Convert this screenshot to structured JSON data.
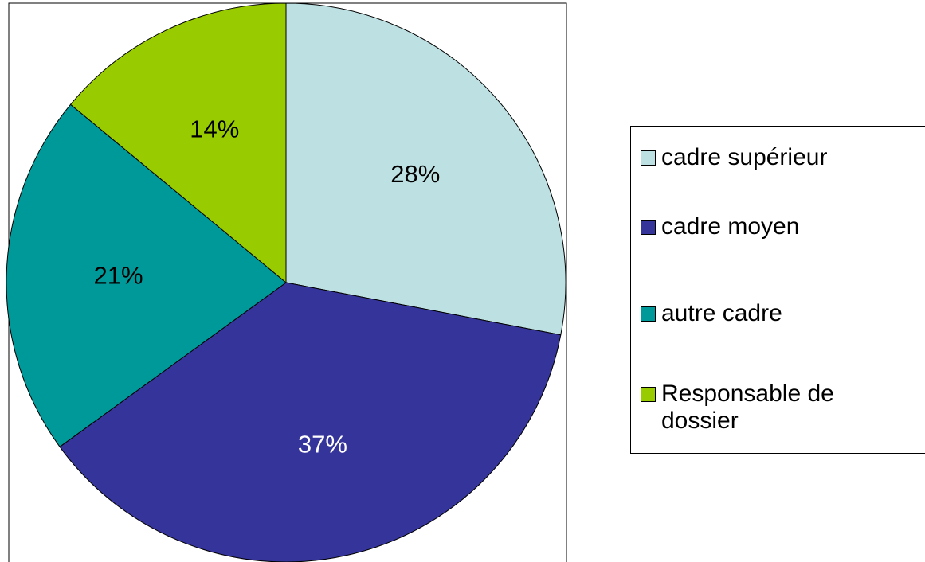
{
  "chart_data": {
    "type": "pie",
    "categories": [
      "cadre supérieur",
      "cadre moyen",
      "autre cadre",
      "Responsable de dossier"
    ],
    "values": [
      28,
      37,
      21,
      14
    ],
    "value_labels": [
      "28%",
      "37%",
      "21%",
      "14%"
    ],
    "colors": [
      "#bde0e3",
      "#35349a",
      "#009999",
      "#99cc00"
    ],
    "legend": "right"
  }
}
